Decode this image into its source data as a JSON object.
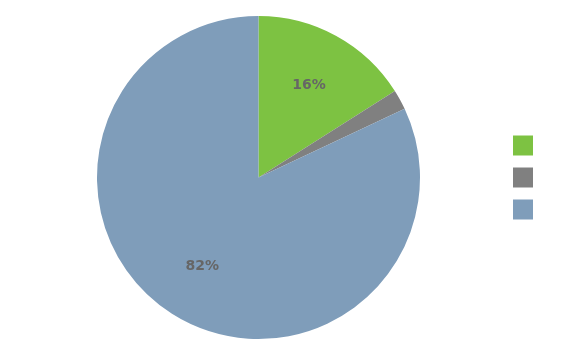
{
  "chart_data": {
    "type": "pie",
    "values": [
      16,
      2,
      82
    ],
    "value_labels": [
      "16%",
      null,
      "82%"
    ],
    "colors": [
      "#7dc242",
      "#808080",
      "#7f9dba"
    ],
    "data_labels": true,
    "legend": "right"
  }
}
